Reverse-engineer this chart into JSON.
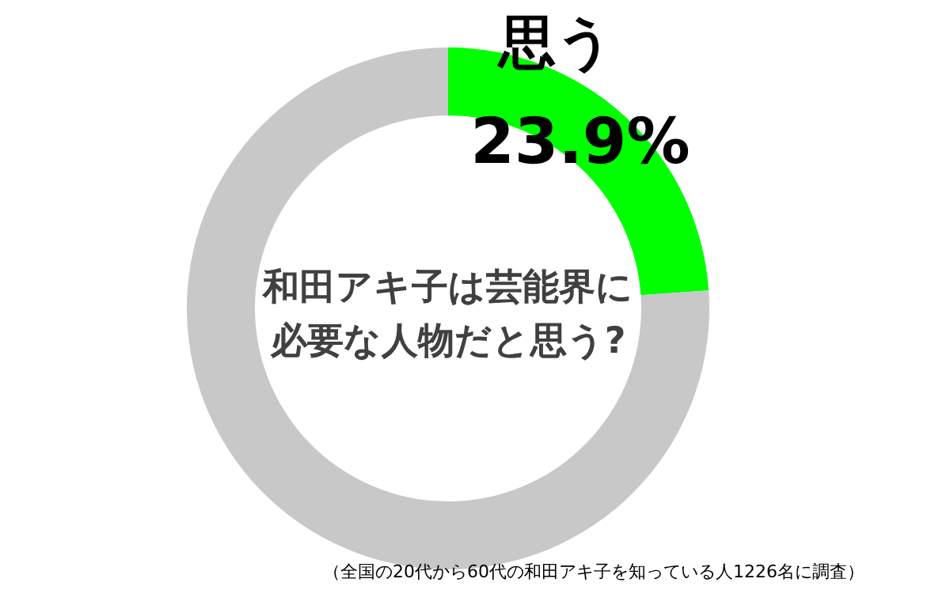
{
  "chart_data": {
    "type": "donut",
    "title": "和田アキ子は芸能界に必要な人物だと思う?",
    "categories": [
      "思う",
      null
    ],
    "values": [
      23.9,
      76.1
    ],
    "colors": [
      "#00ff00",
      "#c8c8c8"
    ],
    "value_labels": [
      "23.9%",
      null
    ],
    "annotations": [
      "（全国の20代から60代の和田アキ子を知っている人1226名に調査）"
    ]
  }
}
